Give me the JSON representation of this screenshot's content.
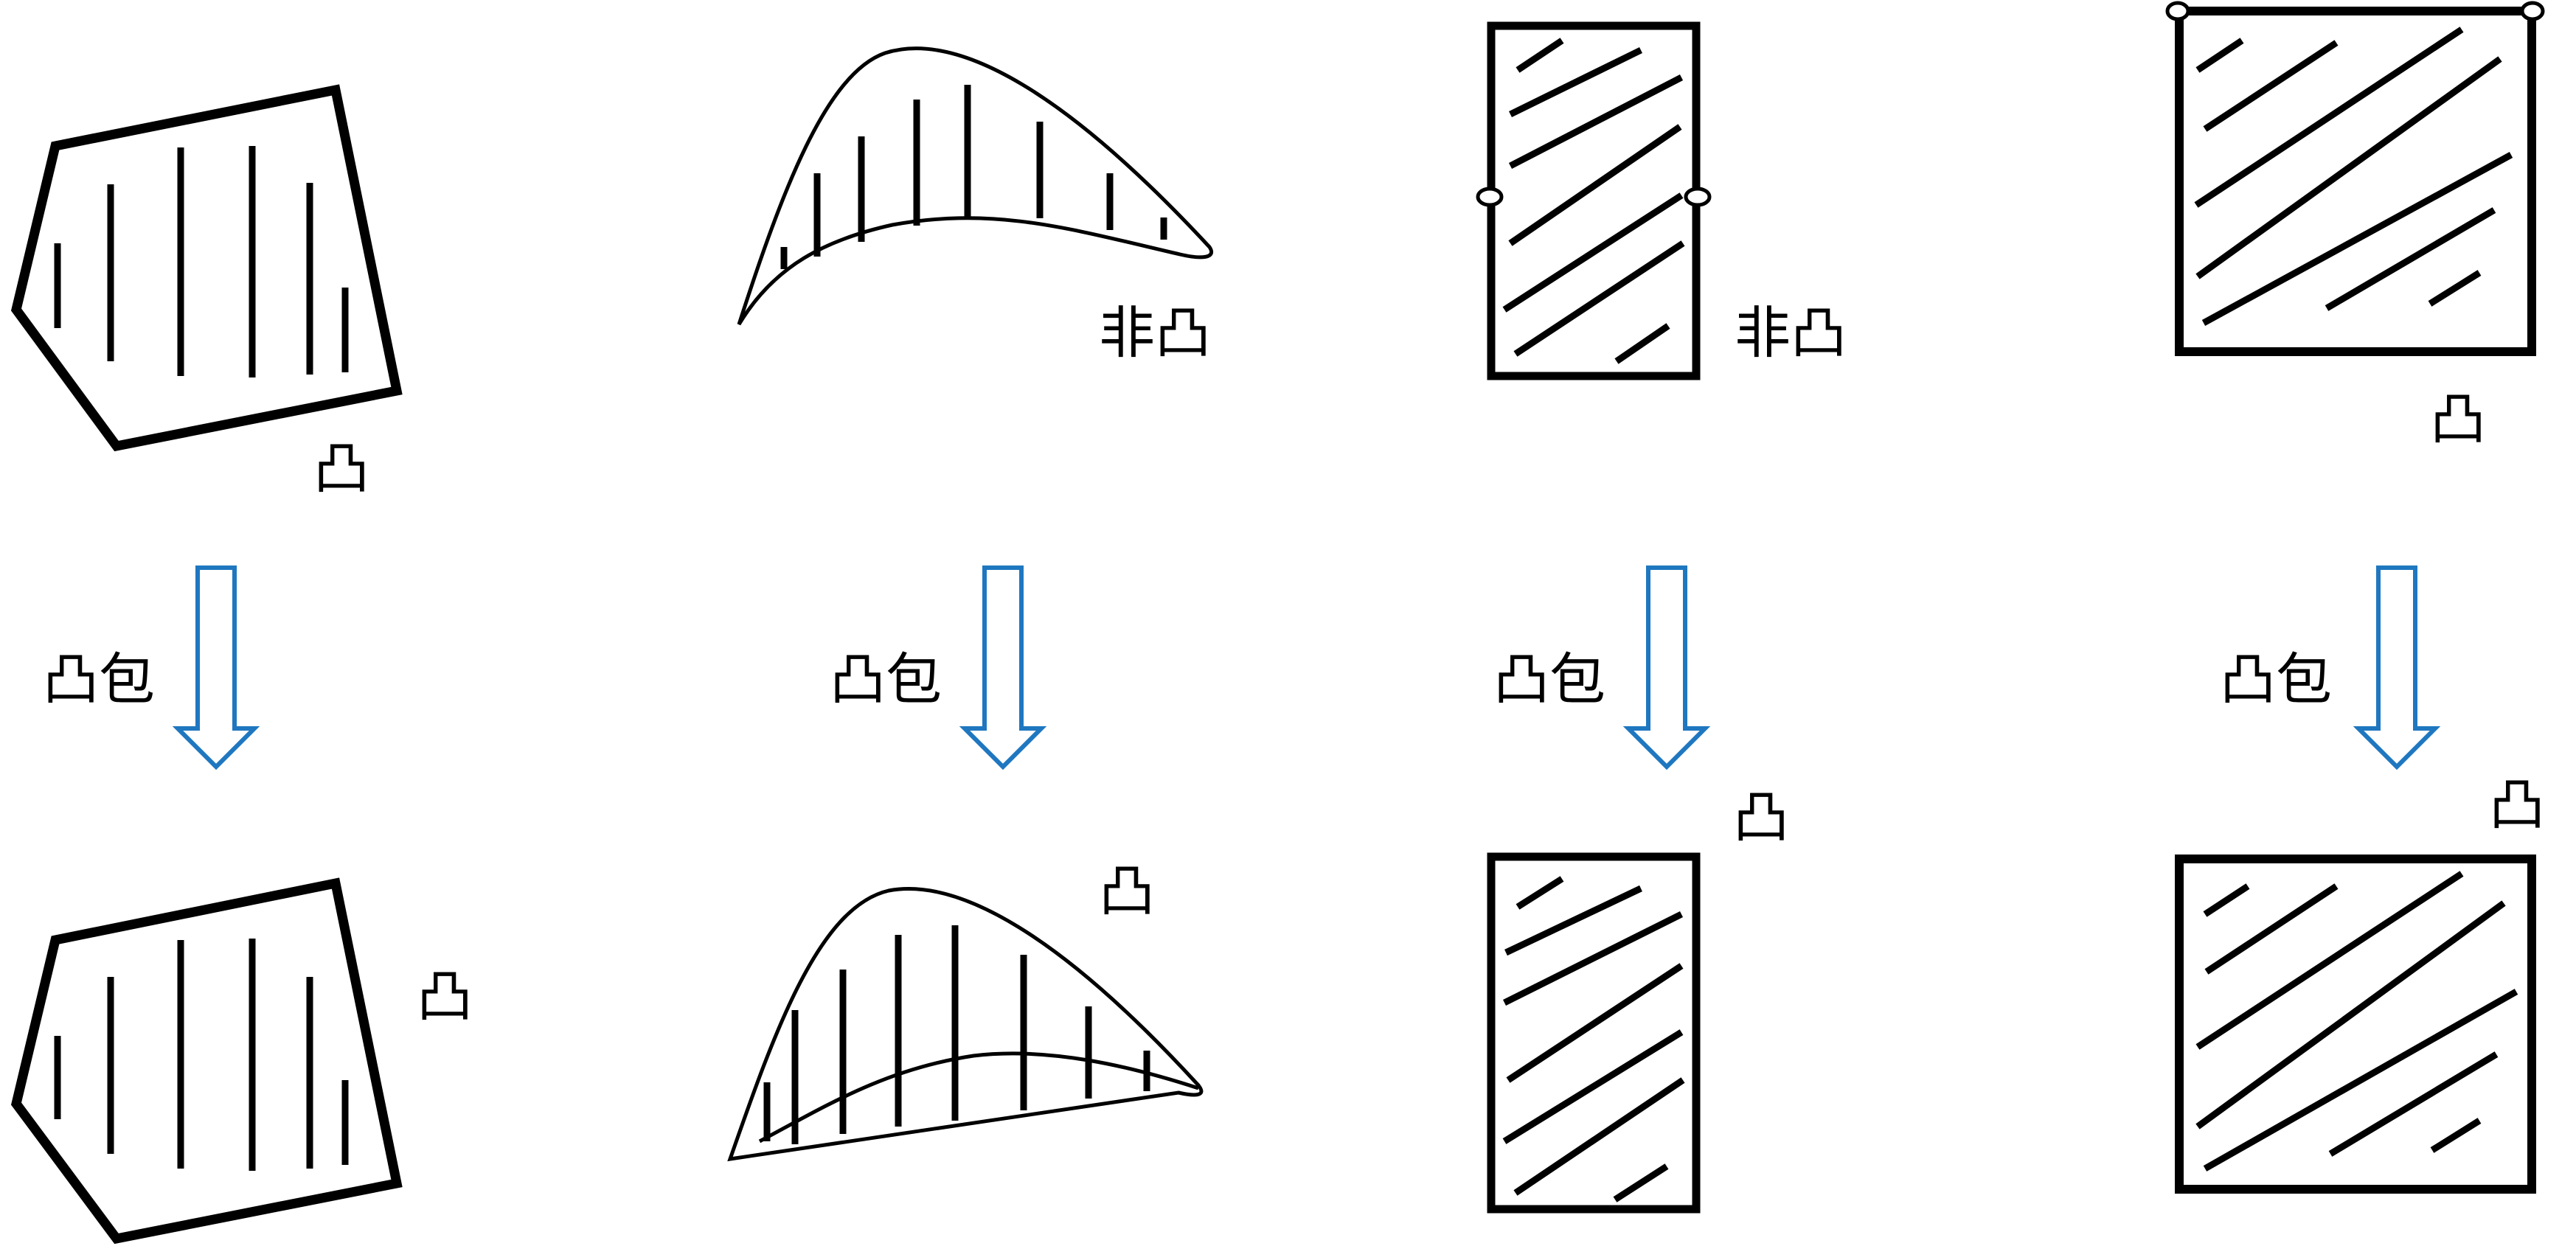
{
  "colors": {
    "stroke": "#000000",
    "arrow": "#1f77c0",
    "background": "#ffffff"
  },
  "columns": [
    {
      "id": "polygon",
      "top_label": "凸",
      "arrow_label": "凸包",
      "bottom_label": "凸"
    },
    {
      "id": "crescent",
      "top_label": "非凸",
      "arrow_label": "凸包",
      "bottom_label": "凸"
    },
    {
      "id": "rectangle-open",
      "top_label": "非凸",
      "arrow_label": "凸包",
      "bottom_label": "凸"
    },
    {
      "id": "square-closed",
      "top_label": "凸",
      "arrow_label": "凸包",
      "bottom_label": "凸"
    }
  ]
}
